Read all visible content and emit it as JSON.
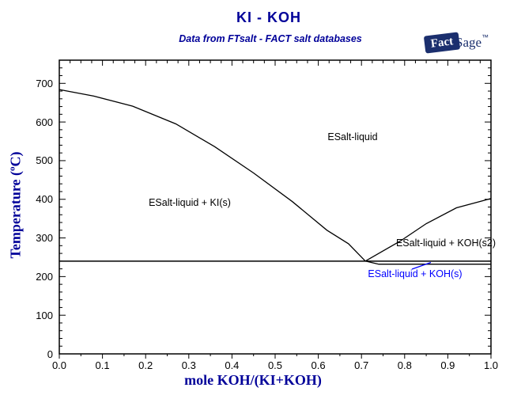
{
  "header": {
    "title": "KI - KOH",
    "subtitle": "Data from FTsalt - FACT salt databases"
  },
  "logo": {
    "name": "FactSage",
    "fact": "Fact",
    "sage": "Sage",
    "tm": "™"
  },
  "axes": {
    "x": {
      "title": "mole KOH/(KI+KOH)",
      "ticks": [
        "0.0",
        "0.1",
        "0.2",
        "0.3",
        "0.4",
        "0.5",
        "0.6",
        "0.7",
        "0.8",
        "0.9",
        "1.0"
      ]
    },
    "y": {
      "title": "Temperature (°C)",
      "title_parts": {
        "pre": "Temperature (",
        "deg": "o",
        "post": "C)"
      },
      "ticks": [
        "0",
        "100",
        "200",
        "300",
        "400",
        "500",
        "600",
        "700"
      ]
    }
  },
  "regions": {
    "liquid": "ESalt-liquid",
    "ki": "ESalt-liquid + KI(s)",
    "koh_s2": "ESalt-liquid + KOH(s2)",
    "koh_s": "ESalt-liquid + KOH(s)"
  },
  "colors": {
    "navy": "#000099",
    "blue": "#0000ff",
    "line": "#000000",
    "logo_navy": "#1b2f6e",
    "background": "#ffffff"
  },
  "chart_data": {
    "type": "line",
    "title": "KI - KOH",
    "subtitle": "Data from FTsalt - FACT salt databases",
    "xlabel": "mole KOH/(KI+KOH)",
    "ylabel": "Temperature (°C)",
    "xlim": [
      0.0,
      1.0
    ],
    "ylim": [
      0,
      760
    ],
    "grid": false,
    "legend_position": "none",
    "x_major_step": 0.1,
    "x_minor_step_bottom": 0.05,
    "x_minor_step_top": 0.025,
    "y_major_step": 100,
    "y_minor_step": 20,
    "series": [
      {
        "name": "liquidus-KI-side",
        "description": "Boundary between ESalt-liquid and ESalt-liquid + KI(s)",
        "points": [
          [
            0.0,
            684
          ],
          [
            0.08,
            667
          ],
          [
            0.17,
            641
          ],
          [
            0.27,
            595
          ],
          [
            0.36,
            536
          ],
          [
            0.45,
            468
          ],
          [
            0.54,
            394
          ],
          [
            0.62,
            320
          ],
          [
            0.67,
            285
          ],
          [
            0.709,
            240
          ]
        ]
      },
      {
        "name": "liquidus-KOH-side",
        "description": "Boundary between ESalt-liquid and ESalt-liquid + KOH(s2)",
        "points": [
          [
            0.709,
            240
          ],
          [
            0.79,
            292
          ],
          [
            0.85,
            337
          ],
          [
            0.92,
            378
          ],
          [
            1.0,
            402
          ]
        ]
      },
      {
        "name": "koh-s2-s-boundary",
        "description": "Lower boundary of the thin ESalt-liquid + KOH(s) strip",
        "points": [
          [
            0.709,
            240
          ],
          [
            0.74,
            232
          ],
          [
            1.0,
            232
          ]
        ]
      }
    ],
    "horizontal_lines": [
      {
        "T": 240,
        "x_from": 0.0,
        "x_to": 1.0,
        "label": "eutectic isotherm"
      }
    ],
    "eutectic": {
      "x": 0.71,
      "T_C": 240
    },
    "endpoints": {
      "KI_melting_C": 684,
      "KOH_melting_C": 402
    },
    "annotations": [
      {
        "text": "ESalt-liquid",
        "x": 0.68,
        "T": 562,
        "color": "#000000"
      },
      {
        "text": "ESalt-liquid + KI(s)",
        "x": 0.3,
        "T": 392,
        "color": "#000000"
      },
      {
        "text": "ESalt-liquid + KOH(s2)",
        "x": 0.9,
        "T": 287,
        "color": "#000000"
      },
      {
        "text": "ESalt-liquid + KOH(s)",
        "x": 0.82,
        "T": 207,
        "color": "#0000ff",
        "leader": true
      }
    ]
  }
}
